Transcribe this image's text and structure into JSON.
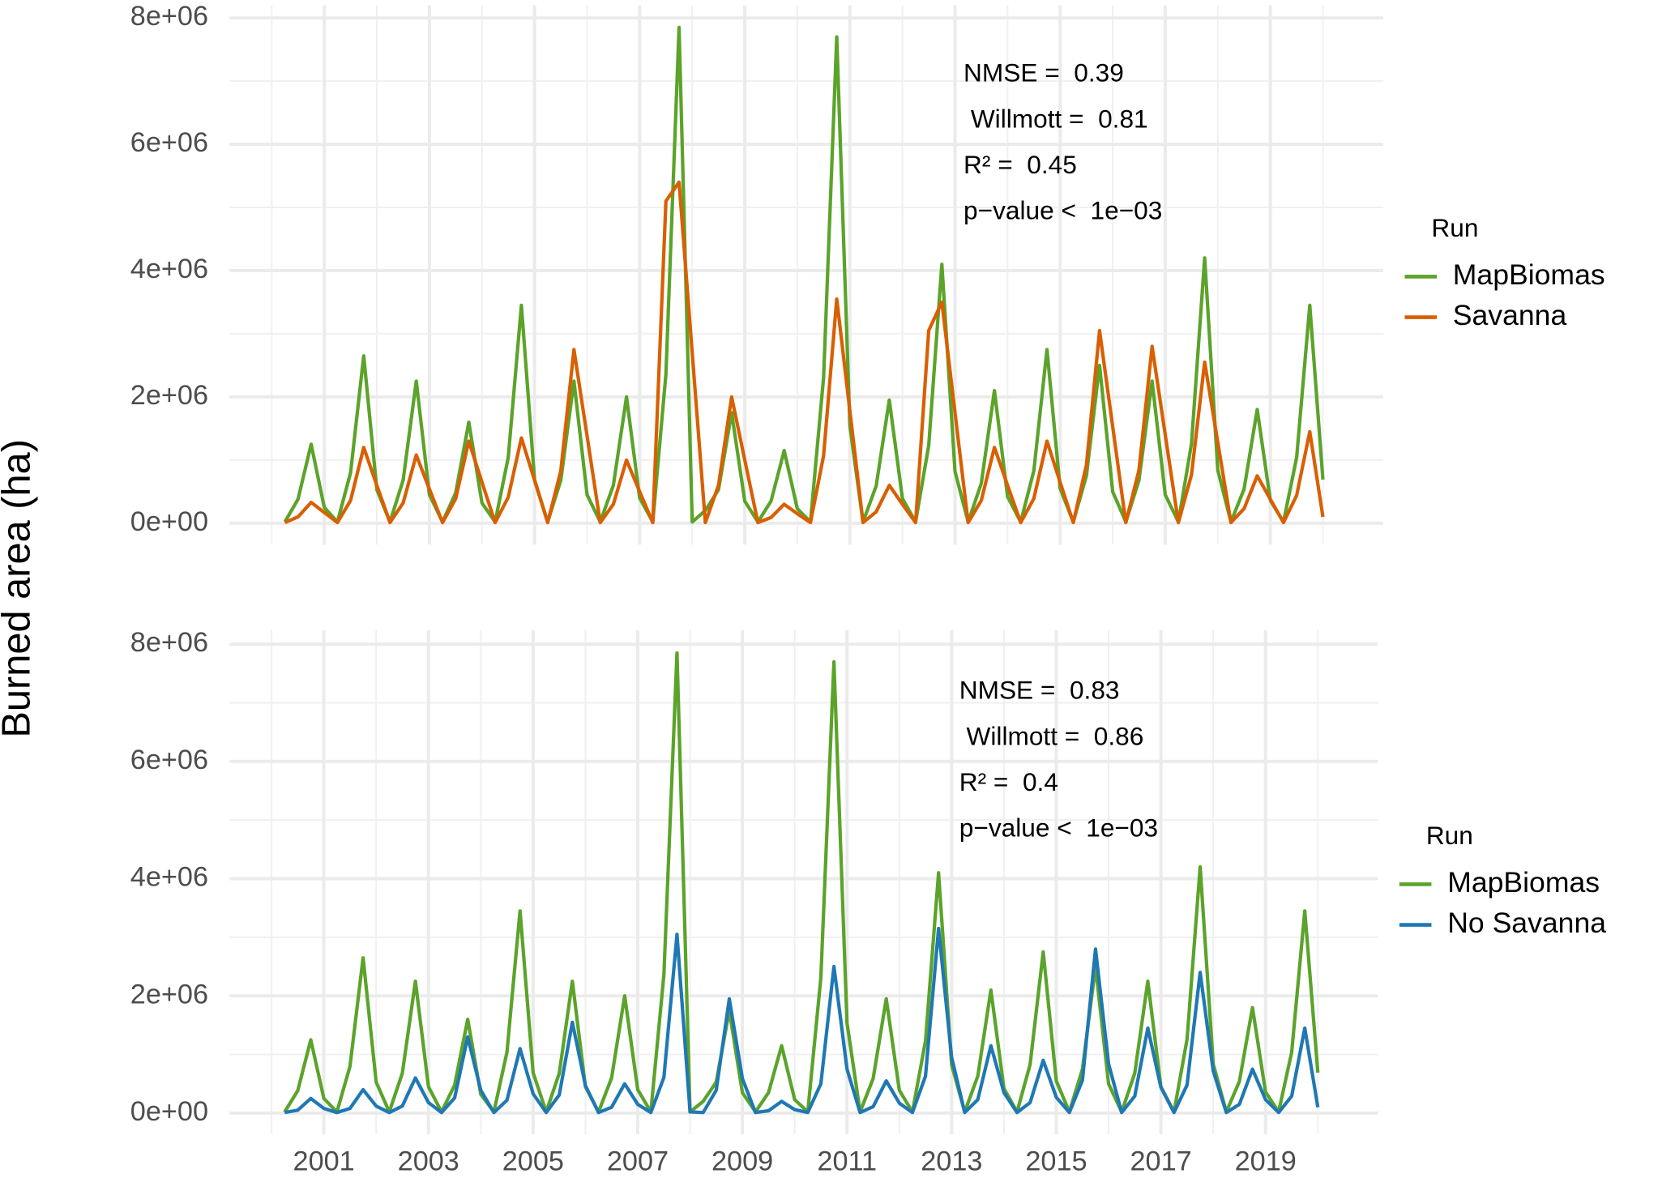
{
  "y_label": "Burned area (ha)",
  "chart_data": [
    {
      "type": "line",
      "x": [
        2000.25,
        2000.5,
        2000.75,
        2001,
        2001.25,
        2001.5,
        2001.75,
        2002,
        2002.25,
        2002.5,
        2002.75,
        2003,
        2003.25,
        2003.5,
        2003.75,
        2004,
        2004.25,
        2004.5,
        2004.75,
        2005,
        2005.25,
        2005.5,
        2005.75,
        2006,
        2006.25,
        2006.5,
        2006.75,
        2007,
        2007.25,
        2007.5,
        2007.75,
        2008,
        2008.25,
        2008.5,
        2008.75,
        2009,
        2009.25,
        2009.5,
        2009.75,
        2010,
        2010.25,
        2010.5,
        2010.75,
        2011,
        2011.25,
        2011.5,
        2011.75,
        2012,
        2012.25,
        2012.5,
        2012.75,
        2013,
        2013.25,
        2013.5,
        2013.75,
        2014,
        2014.25,
        2014.5,
        2014.75,
        2015,
        2015.25,
        2015.5,
        2015.75,
        2016,
        2016.25,
        2016.5,
        2016.75,
        2017,
        2017.25,
        2017.5,
        2017.75,
        2018,
        2018.25,
        2018.5,
        2018.75,
        2019,
        2019.25,
        2019.5,
        2019.75,
        2020
      ],
      "series": [
        {
          "name": "MapBiomas",
          "color": "#5ba32a",
          "values": [
            20000,
            380000,
            1250000,
            250000,
            20000,
            800000,
            2650000,
            530000,
            20000,
            680000,
            2250000,
            450000,
            20000,
            480000,
            1600000,
            320000,
            20000,
            1040000,
            3450000,
            690000,
            20000,
            680000,
            2250000,
            450000,
            20000,
            600000,
            2000000,
            400000,
            20000,
            2360000,
            7850000,
            20000,
            200000,
            530000,
            1750000,
            350000,
            20000,
            350000,
            1150000,
            230000,
            20000,
            2310000,
            7700000,
            1540000,
            20000,
            590000,
            1950000,
            390000,
            20000,
            1230000,
            4100000,
            820000,
            20000,
            630000,
            2100000,
            420000,
            20000,
            830000,
            2750000,
            550000,
            20000,
            750000,
            2500000,
            500000,
            20000,
            680000,
            2250000,
            450000,
            20000,
            1260000,
            4200000,
            840000,
            20000,
            540000,
            1800000,
            360000,
            20000,
            1040000,
            3450000,
            690000
          ]
        },
        {
          "name": "Savanna",
          "color": "#d95f02",
          "values": [
            10000,
            100000,
            330000,
            170000,
            10000,
            360000,
            1200000,
            600000,
            10000,
            320000,
            1080000,
            540000,
            10000,
            390000,
            1300000,
            650000,
            10000,
            410000,
            1350000,
            680000,
            10000,
            830000,
            2750000,
            1380000,
            10000,
            300000,
            1000000,
            500000,
            10000,
            5100000,
            5400000,
            2700000,
            10000,
            600000,
            2000000,
            1000000,
            10000,
            90000,
            300000,
            150000,
            10000,
            1070000,
            3550000,
            1780000,
            10000,
            180000,
            600000,
            300000,
            10000,
            3050000,
            3500000,
            1750000,
            10000,
            360000,
            1200000,
            600000,
            10000,
            390000,
            1300000,
            650000,
            10000,
            920000,
            3050000,
            1530000,
            10000,
            840000,
            2800000,
            1400000,
            10000,
            770000,
            2550000,
            1280000,
            10000,
            230000,
            750000,
            380000,
            10000,
            440000,
            1450000,
            100000
          ]
        }
      ],
      "xlim": [
        1999.2,
        2021.15
      ],
      "xticks": [
        2001,
        2003,
        2005,
        2007,
        2009,
        2011,
        2013,
        2015,
        2017,
        2019
      ],
      "ylim": [
        -340000,
        8200000
      ],
      "yticks": [
        {
          "value": 0,
          "label": "0e+00"
        },
        {
          "value": 2000000,
          "label": "2e+06"
        },
        {
          "value": 4000000,
          "label": "4e+06"
        },
        {
          "value": 6000000,
          "label": "6e+06"
        },
        {
          "value": 8000000,
          "label": "8e+06"
        }
      ],
      "grid": true,
      "annotations": [
        "NMSE =  0.39",
        " Willmott =  0.81",
        "R² =  0.45",
        "p−value <  1e−03"
      ],
      "legend_title": "Run",
      "legend": "right"
    },
    {
      "type": "line",
      "x": [
        2000.25,
        2000.5,
        2000.75,
        2001,
        2001.25,
        2001.5,
        2001.75,
        2002,
        2002.25,
        2002.5,
        2002.75,
        2003,
        2003.25,
        2003.5,
        2003.75,
        2004,
        2004.25,
        2004.5,
        2004.75,
        2005,
        2005.25,
        2005.5,
        2005.75,
        2006,
        2006.25,
        2006.5,
        2006.75,
        2007,
        2007.25,
        2007.5,
        2007.75,
        2008,
        2008.25,
        2008.5,
        2008.75,
        2009,
        2009.25,
        2009.5,
        2009.75,
        2010,
        2010.25,
        2010.5,
        2010.75,
        2011,
        2011.25,
        2011.5,
        2011.75,
        2012,
        2012.25,
        2012.5,
        2012.75,
        2013,
        2013.25,
        2013.5,
        2013.75,
        2014,
        2014.25,
        2014.5,
        2014.75,
        2015,
        2015.25,
        2015.5,
        2015.75,
        2016,
        2016.25,
        2016.5,
        2016.75,
        2017,
        2017.25,
        2017.5,
        2017.75,
        2018,
        2018.25,
        2018.5,
        2018.75,
        2019,
        2019.25,
        2019.5,
        2019.75,
        2020
      ],
      "series": [
        {
          "name": "MapBiomas",
          "color": "#5ba32a",
          "values": [
            20000,
            380000,
            1250000,
            250000,
            20000,
            800000,
            2650000,
            530000,
            20000,
            680000,
            2250000,
            450000,
            20000,
            480000,
            1600000,
            320000,
            20000,
            1040000,
            3450000,
            690000,
            20000,
            680000,
            2250000,
            450000,
            20000,
            600000,
            2000000,
            400000,
            20000,
            2360000,
            7850000,
            20000,
            200000,
            530000,
            1750000,
            350000,
            20000,
            350000,
            1150000,
            230000,
            20000,
            2310000,
            7700000,
            1540000,
            20000,
            590000,
            1950000,
            390000,
            20000,
            1230000,
            4100000,
            820000,
            20000,
            630000,
            2100000,
            420000,
            20000,
            830000,
            2750000,
            550000,
            20000,
            750000,
            2500000,
            500000,
            20000,
            680000,
            2250000,
            450000,
            20000,
            1260000,
            4200000,
            840000,
            20000,
            540000,
            1800000,
            360000,
            20000,
            1040000,
            3450000,
            690000
          ]
        },
        {
          "name": "No Savanna",
          "color": "#1f78b4",
          "values": [
            10000,
            50000,
            250000,
            80000,
            10000,
            80000,
            400000,
            120000,
            10000,
            120000,
            600000,
            180000,
            10000,
            260000,
            1300000,
            390000,
            10000,
            220000,
            1100000,
            330000,
            10000,
            310000,
            1550000,
            470000,
            10000,
            100000,
            500000,
            150000,
            10000,
            610000,
            3050000,
            20000,
            10000,
            390000,
            1950000,
            590000,
            10000,
            40000,
            200000,
            60000,
            10000,
            500000,
            2500000,
            750000,
            10000,
            110000,
            550000,
            170000,
            10000,
            630000,
            3150000,
            950000,
            10000,
            230000,
            1150000,
            350000,
            10000,
            180000,
            900000,
            270000,
            10000,
            560000,
            2800000,
            840000,
            10000,
            290000,
            1450000,
            440000,
            10000,
            480000,
            2400000,
            720000,
            10000,
            150000,
            750000,
            230000,
            10000,
            290000,
            1450000,
            100000
          ]
        }
      ],
      "xlim": [
        1999.2,
        2021.15
      ],
      "xticks": [
        2001,
        2003,
        2005,
        2007,
        2009,
        2011,
        2013,
        2015,
        2017,
        2019
      ],
      "ylim": [
        -360000,
        8240000
      ],
      "yticks": [
        {
          "value": 0,
          "label": "0e+00"
        },
        {
          "value": 2000000,
          "label": "2e+06"
        },
        {
          "value": 4000000,
          "label": "4e+06"
        },
        {
          "value": 6000000,
          "label": "6e+06"
        },
        {
          "value": 8000000,
          "label": "8e+06"
        }
      ],
      "grid": true,
      "annotations": [
        "NMSE =  0.83",
        " Willmott =  0.86",
        "R² =  0.4",
        "p−value <  1e−03"
      ],
      "legend_title": "Run",
      "legend": "right"
    }
  ]
}
